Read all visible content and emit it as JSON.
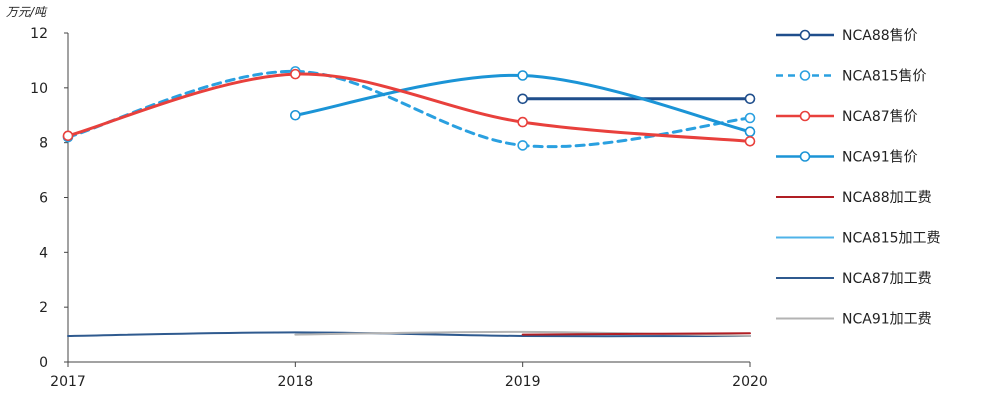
{
  "chart_data": {
    "type": "line",
    "unit_label": "万元/吨",
    "x": [
      "2017",
      "2018",
      "2019",
      "2020"
    ],
    "ylim": [
      0,
      12
    ],
    "yticks": [
      0,
      2,
      4,
      6,
      8,
      10,
      12
    ],
    "grid": false,
    "legend_position": "right",
    "series": [
      {
        "name": "NCA88售价",
        "color": "#1f4e8c",
        "style": "solid",
        "markers": true,
        "values": [
          null,
          null,
          9.6,
          9.6
        ]
      },
      {
        "name": "NCA815售价",
        "color": "#2aa0e0",
        "style": "dashed",
        "markers": true,
        "values": [
          8.2,
          10.6,
          7.9,
          8.9
        ]
      },
      {
        "name": "NCA87售价",
        "color": "#e8403c",
        "style": "solid",
        "markers": true,
        "values": [
          8.25,
          10.5,
          8.75,
          8.05
        ]
      },
      {
        "name": "NCA91售价",
        "color": "#1b94d6",
        "style": "solid",
        "markers": true,
        "values": [
          null,
          9.0,
          10.45,
          8.4
        ]
      },
      {
        "name": "NCA88加工费",
        "color": "#b01e24",
        "style": "solid",
        "markers": false,
        "values": [
          null,
          null,
          1.0,
          1.05
        ]
      },
      {
        "name": "NCA815加工费",
        "color": "#4fb3e8",
        "style": "solid",
        "markers": false,
        "values": [
          null,
          null,
          null,
          null
        ]
      },
      {
        "name": "NCA87加工费",
        "color": "#2f5a8f",
        "style": "solid",
        "markers": false,
        "values": [
          0.95,
          1.08,
          0.95,
          0.95
        ]
      },
      {
        "name": "NCA91加工费",
        "color": "#b3b3b3",
        "style": "solid",
        "markers": false,
        "values": [
          null,
          1.0,
          1.1,
          0.95
        ]
      }
    ]
  }
}
